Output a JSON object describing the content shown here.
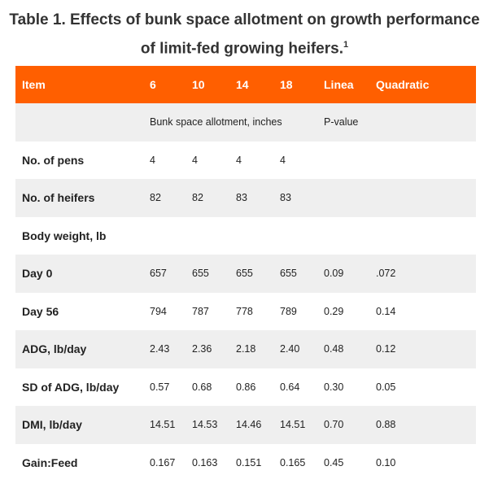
{
  "title": {
    "line1": "Table 1. Effects of bunk space allotment on growth performance",
    "line2": "of limit-fed growing heifers.",
    "footnote": "1"
  },
  "header": [
    "Item",
    "6",
    "10",
    "14",
    "18",
    "Linea",
    "Quadratic"
  ],
  "subheader": {
    "bunk": "Bunk space allotment, inches",
    "pvalue": "P-value"
  },
  "rows": [
    {
      "label": "No. of pens",
      "v": [
        "4",
        "4",
        "4",
        "4",
        "",
        ""
      ]
    },
    {
      "label": "No. of heifers",
      "v": [
        "82",
        "82",
        "83",
        "83",
        "",
        ""
      ]
    },
    {
      "label": "Body weight, lb",
      "v": [
        "",
        "",
        "",
        "",
        "",
        ""
      ]
    },
    {
      "label": "Day 0",
      "v": [
        "657",
        "655",
        "655",
        "655",
        "0.09",
        ".072"
      ]
    },
    {
      "label": "Day 56",
      "v": [
        "794",
        "787",
        "778",
        "789",
        "0.29",
        "0.14"
      ]
    },
    {
      "label": "ADG, lb/day",
      "v": [
        "2.43",
        "2.36",
        "2.18",
        "2.40",
        "0.48",
        "0.12"
      ]
    },
    {
      "label": "SD of ADG, lb/day",
      "v": [
        "0.57",
        "0.68",
        "0.86",
        "0.64",
        "0.30",
        "0.05"
      ]
    },
    {
      "label": "DMI, lb/day",
      "v": [
        "14.51",
        "14.53",
        "14.46",
        "14.51",
        "0.70",
        "0.88"
      ]
    },
    {
      "label": "Gain:Feed",
      "v": [
        "0.167",
        "0.163",
        "0.151",
        "0.165",
        "0.45",
        "0.10"
      ]
    }
  ],
  "colors": {
    "header_bg": "#ff5f00",
    "stripe": "#efefef"
  }
}
